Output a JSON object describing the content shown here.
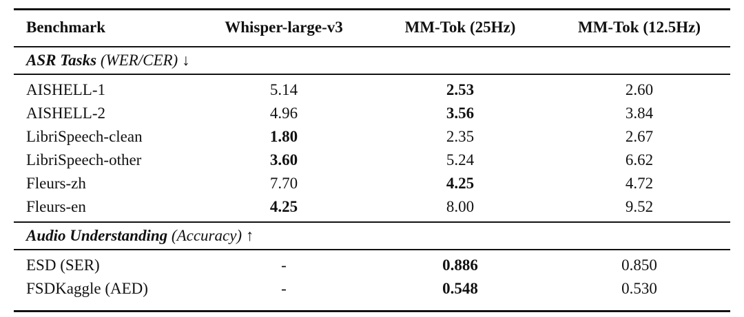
{
  "table": {
    "header": [
      "Benchmark",
      "Whisper-large-v3",
      "MM-Tok (25Hz)",
      "MM-Tok (12.5Hz)"
    ],
    "sections": [
      {
        "title": "ASR Tasks",
        "metric": "(WER/CER) ↓",
        "rows": [
          {
            "cells": [
              "AISHELL-1",
              "5.14",
              "2.53",
              "2.60"
            ],
            "best": 2
          },
          {
            "cells": [
              "AISHELL-2",
              "4.96",
              "3.56",
              "3.84"
            ],
            "best": 2
          },
          {
            "cells": [
              "LibriSpeech-clean",
              "1.80",
              "2.35",
              "2.67"
            ],
            "best": 1
          },
          {
            "cells": [
              "LibriSpeech-other",
              "3.60",
              "5.24",
              "6.62"
            ],
            "best": 1
          },
          {
            "cells": [
              "Fleurs-zh",
              "7.70",
              "4.25",
              "4.72"
            ],
            "best": 2
          },
          {
            "cells": [
              "Fleurs-en",
              "4.25",
              "8.00",
              "9.52"
            ],
            "best": 1
          }
        ]
      },
      {
        "title": "Audio Understanding",
        "metric": "(Accuracy) ↑",
        "rows": [
          {
            "cells": [
              "ESD (SER)",
              "-",
              "0.886",
              "0.850"
            ],
            "best": 2
          },
          {
            "cells": [
              "FSDKaggle (AED)",
              "-",
              "0.548",
              "0.530"
            ],
            "best": 2
          }
        ]
      }
    ]
  }
}
